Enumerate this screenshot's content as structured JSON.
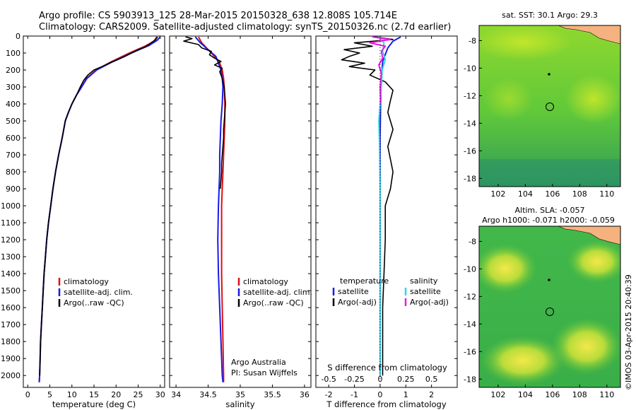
{
  "header": {
    "title_line1": "Argo profile: CS 5903913_125 28-Mar-2015 20150328_638 12.808S 105.714E",
    "title_line2": "Climatology: CARS2009. Satellite-adjusted climatology: synTS_20150326.nc (2.7d earlier)"
  },
  "side_label": "©IMOS 03-Apr-2015 20:40:39",
  "colors": {
    "climatology": "#dd1111",
    "satellite": "#1a1ae6",
    "argo": "#000000",
    "satellite_salinity": "#33d6e6",
    "argo_salinity": "#e61ae6",
    "land": "#f5b27e"
  },
  "chart_data": [
    {
      "id": "temperature_profile",
      "type": "line",
      "xlabel": "temperature (deg C)",
      "xlim": [
        -1,
        31
      ],
      "xticks": [
        0,
        5,
        10,
        15,
        20,
        25,
        30
      ],
      "ylim": [
        2070,
        0
      ],
      "yticks": [
        0,
        100,
        200,
        300,
        400,
        500,
        600,
        700,
        800,
        900,
        1000,
        1100,
        1200,
        1300,
        1400,
        1500,
        1600,
        1700,
        1800,
        1900,
        2000
      ],
      "legend": [
        "climatology",
        "satellite-adj. clim.",
        "Argo(..raw -QC)"
      ],
      "series": [
        {
          "name": "climatology",
          "color_key": "climatology",
          "points": [
            [
              29.2,
              5
            ],
            [
              28.6,
              30
            ],
            [
              26.5,
              60
            ],
            [
              23.0,
              100
            ],
            [
              19.0,
              150
            ],
            [
              15.5,
              200
            ],
            [
              13.3,
              250
            ],
            [
              12.2,
              300
            ],
            [
              11.0,
              350
            ],
            [
              10.0,
              400
            ],
            [
              9.2,
              450
            ],
            [
              8.5,
              500
            ],
            [
              7.8,
              600
            ],
            [
              7.0,
              700
            ],
            [
              6.3,
              800
            ],
            [
              5.7,
              900
            ],
            [
              5.2,
              1000
            ],
            [
              4.7,
              1100
            ],
            [
              4.3,
              1200
            ],
            [
              4.0,
              1300
            ],
            [
              3.7,
              1400
            ],
            [
              3.5,
              1500
            ],
            [
              3.3,
              1600
            ],
            [
              3.1,
              1700
            ],
            [
              2.9,
              1800
            ],
            [
              2.8,
              1900
            ],
            [
              2.7,
              2000
            ],
            [
              2.6,
              2040
            ]
          ]
        },
        {
          "name": "satellite-adj. clim.",
          "color_key": "satellite",
          "points": [
            [
              30.0,
              5
            ],
            [
              29.3,
              25
            ],
            [
              27.5,
              55
            ],
            [
              23.5,
              100
            ],
            [
              19.3,
              150
            ],
            [
              15.6,
              200
            ],
            [
              13.4,
              250
            ],
            [
              12.2,
              300
            ],
            [
              11.0,
              350
            ],
            [
              10.0,
              400
            ],
            [
              9.2,
              450
            ],
            [
              8.5,
              500
            ],
            [
              7.8,
              600
            ],
            [
              7.0,
              700
            ],
            [
              6.3,
              800
            ],
            [
              5.7,
              900
            ],
            [
              5.2,
              1000
            ],
            [
              4.7,
              1100
            ],
            [
              4.3,
              1200
            ],
            [
              4.0,
              1300
            ],
            [
              3.7,
              1400
            ],
            [
              3.5,
              1500
            ],
            [
              3.3,
              1600
            ],
            [
              3.1,
              1700
            ],
            [
              2.9,
              1800
            ],
            [
              2.8,
              1900
            ],
            [
              2.7,
              2000
            ],
            [
              2.6,
              2040
            ]
          ]
        },
        {
          "name": "Argo(..raw -QC)",
          "color_key": "argo",
          "points": [
            [
              29.4,
              5
            ],
            [
              29.0,
              20
            ],
            [
              28.2,
              35
            ],
            [
              27.5,
              50
            ],
            [
              26.5,
              65
            ],
            [
              25.0,
              80
            ],
            [
              23.5,
              100
            ],
            [
              22.0,
              120
            ],
            [
              20.3,
              140
            ],
            [
              18.5,
              160
            ],
            [
              16.8,
              180
            ],
            [
              15.0,
              200
            ],
            [
              13.6,
              230
            ],
            [
              12.7,
              260
            ],
            [
              11.9,
              300
            ],
            [
              11.0,
              350
            ],
            [
              10.0,
              400
            ],
            [
              9.2,
              450
            ],
            [
              8.5,
              500
            ],
            [
              7.8,
              600
            ],
            [
              7.0,
              700
            ],
            [
              6.3,
              800
            ],
            [
              5.7,
              900
            ],
            [
              5.2,
              1000
            ],
            [
              4.7,
              1100
            ],
            [
              4.3,
              1200
            ],
            [
              4.0,
              1300
            ],
            [
              3.7,
              1400
            ],
            [
              3.5,
              1500
            ],
            [
              3.3,
              1600
            ],
            [
              3.1,
              1700
            ],
            [
              2.9,
              1800
            ],
            [
              2.8,
              1900
            ],
            [
              2.7,
              2000
            ]
          ]
        }
      ]
    },
    {
      "id": "salinity_profile",
      "type": "line",
      "xlabel": "salinity",
      "xlim": [
        33.9,
        36.1
      ],
      "xticks": [
        34,
        34.5,
        35,
        35.5,
        36
      ],
      "ylim": [
        2070,
        0
      ],
      "legend": [
        "climatology",
        "satellite-adj. clim.",
        "Argo(..raw -QC)"
      ],
      "annotation": [
        "Argo Australia",
        "PI: Susan Wijffels"
      ],
      "series": [
        {
          "name": "climatology",
          "color_key": "climatology",
          "points": [
            [
              34.35,
              5
            ],
            [
              34.4,
              40
            ],
            [
              34.5,
              80
            ],
            [
              34.6,
              120
            ],
            [
              34.68,
              160
            ],
            [
              34.72,
              200
            ],
            [
              34.74,
              250
            ],
            [
              34.75,
              300
            ],
            [
              34.76,
              400
            ],
            [
              34.76,
              500
            ],
            [
              34.75,
              600
            ],
            [
              34.74,
              700
            ],
            [
              34.73,
              800
            ],
            [
              34.72,
              900
            ],
            [
              34.71,
              1000
            ],
            [
              34.71,
              1200
            ],
            [
              34.71,
              1400
            ],
            [
              34.72,
              1600
            ],
            [
              34.73,
              1800
            ],
            [
              34.74,
              2000
            ],
            [
              34.74,
              2040
            ]
          ]
        },
        {
          "name": "satellite-adj. clim.",
          "color_key": "satellite",
          "points": [
            [
              34.3,
              5
            ],
            [
              34.38,
              40
            ],
            [
              34.5,
              80
            ],
            [
              34.62,
              120
            ],
            [
              34.66,
              160
            ],
            [
              34.7,
              200
            ],
            [
              34.72,
              250
            ],
            [
              34.73,
              300
            ],
            [
              34.72,
              400
            ],
            [
              34.7,
              500
            ],
            [
              34.69,
              600
            ],
            [
              34.68,
              700
            ],
            [
              34.68,
              800
            ],
            [
              34.67,
              900
            ],
            [
              34.66,
              1000
            ],
            [
              34.65,
              1200
            ],
            [
              34.66,
              1400
            ],
            [
              34.68,
              1600
            ],
            [
              34.7,
              1800
            ],
            [
              34.72,
              2000
            ],
            [
              34.73,
              2040
            ]
          ]
        },
        {
          "name": "Argo(..raw -QC)",
          "color_key": "argo",
          "points": [
            [
              34.15,
              5
            ],
            [
              34.25,
              15
            ],
            [
              34.12,
              30
            ],
            [
              34.35,
              50
            ],
            [
              34.4,
              70
            ],
            [
              34.55,
              90
            ],
            [
              34.52,
              110
            ],
            [
              34.6,
              130
            ],
            [
              34.7,
              150
            ],
            [
              34.6,
              170
            ],
            [
              34.72,
              190
            ],
            [
              34.68,
              210
            ],
            [
              34.72,
              250
            ],
            [
              34.75,
              300
            ],
            [
              34.76,
              350
            ],
            [
              34.77,
              400
            ],
            [
              34.76,
              450
            ],
            [
              34.75,
              500
            ],
            [
              34.74,
              550
            ],
            [
              34.74,
              600
            ],
            [
              34.73,
              650
            ],
            [
              34.72,
              700
            ],
            [
              34.71,
              750
            ],
            [
              34.71,
              800
            ],
            [
              34.7,
              850
            ],
            [
              34.69,
              900
            ]
          ]
        }
      ]
    },
    {
      "id": "difference_profile",
      "type": "line",
      "xlabel": "T difference from climatology",
      "xlabel_top": "S difference from climatology",
      "xlim": [
        -2.5,
        3
      ],
      "xticks": [
        -2,
        -1,
        0,
        1,
        2
      ],
      "s_xticks": [
        -0.5,
        -0.25,
        0,
        0.25,
        0.5
      ],
      "s_xtick_labels": [
        "-0.5",
        "-0.25",
        "0",
        "0.25",
        "0.5"
      ],
      "ylim": [
        2070,
        0
      ],
      "legend_temperature_title": "temperature",
      "legend_salinity_title": "salinity",
      "legend_temperature": [
        "satellite",
        "Argo(-adj)"
      ],
      "legend_salinity": [
        "satellite",
        "Argo(-adj)"
      ],
      "series": [
        {
          "name": "temperature satellite",
          "color_key": "satellite",
          "points": [
            [
              0.8,
              5
            ],
            [
              0.5,
              30
            ],
            [
              0.3,
              70
            ],
            [
              0.1,
              150
            ],
            [
              0.05,
              250
            ],
            [
              0.02,
              400
            ],
            [
              0,
              600
            ],
            [
              0,
              1000
            ],
            [
              0,
              1500
            ],
            [
              0,
              2000
            ]
          ]
        },
        {
          "name": "temperature Argo(-adj)",
          "color_key": "argo",
          "points": [
            [
              -0.2,
              5
            ],
            [
              0.5,
              20
            ],
            [
              -1.0,
              40
            ],
            [
              -0.3,
              60
            ],
            [
              -1.4,
              80
            ],
            [
              -0.8,
              100
            ],
            [
              -1.2,
              120
            ],
            [
              -1.5,
              140
            ],
            [
              -0.6,
              160
            ],
            [
              -1.2,
              180
            ],
            [
              -0.2,
              200
            ],
            [
              -0.4,
              230
            ],
            [
              0.2,
              270
            ],
            [
              0.5,
              320
            ],
            [
              0.4,
              380
            ],
            [
              0.3,
              450
            ],
            [
              0.5,
              550
            ],
            [
              0.3,
              650
            ],
            [
              0.5,
              800
            ],
            [
              0.4,
              900
            ],
            [
              0.2,
              1000
            ],
            [
              0.2,
              1200
            ],
            [
              0.15,
              1400
            ],
            [
              0.1,
              1600
            ],
            [
              0.1,
              1800
            ],
            [
              0.1,
              2000
            ]
          ]
        },
        {
          "name": "salinity satellite",
          "color_key": "satellite_salinity",
          "points": [
            [
              -0.05,
              5
            ],
            [
              0.15,
              40
            ],
            [
              0.1,
              90
            ],
            [
              0.2,
              140
            ],
            [
              0.08,
              200
            ],
            [
              0.05,
              300
            ],
            [
              0.0,
              400
            ],
            [
              -0.05,
              500
            ],
            [
              -0.03,
              600
            ],
            [
              -0.02,
              700
            ],
            [
              0,
              900
            ],
            [
              0,
              1500
            ],
            [
              0,
              2000
            ]
          ]
        },
        {
          "name": "salinity Argo(-adj)",
          "color_key": "argo_salinity",
          "points": [
            [
              -0.3,
              5
            ],
            [
              0.4,
              20
            ],
            [
              -0.4,
              40
            ],
            [
              0.2,
              60
            ],
            [
              0.05,
              90
            ],
            [
              0.1,
              130
            ],
            [
              -0.05,
              170
            ],
            [
              0.05,
              220
            ],
            [
              0.0,
              300
            ],
            [
              0.02,
              400
            ]
          ]
        }
      ]
    },
    {
      "id": "sst_map",
      "type": "heatmap",
      "title": "sat. SST: 30.1  Argo: 29.3",
      "xticks": [
        102,
        104,
        106,
        108,
        110
      ],
      "yticks": [
        -8,
        -10,
        -12,
        -14,
        -16,
        -18
      ],
      "xlim": [
        100.6,
        111
      ],
      "ylim": [
        -18.6,
        -6.9
      ],
      "float_position": [
        105.714,
        -12.808
      ],
      "previous_position": [
        105.7,
        -10.5
      ]
    },
    {
      "id": "sla_map",
      "type": "heatmap",
      "title": "Altim. SLA: -0.057",
      "subtitle": "Argo h1000: -0.071 h2000: -0.059",
      "xticks": [
        102,
        104,
        106,
        108,
        110
      ],
      "yticks": [
        -8,
        -10,
        -12,
        -14,
        -16,
        -18
      ],
      "xlim": [
        100.6,
        111
      ],
      "ylim": [
        -18.6,
        -6.9
      ],
      "float_position": [
        105.714,
        -12.808
      ],
      "previous_position": [
        105.7,
        -10.5
      ]
    }
  ]
}
